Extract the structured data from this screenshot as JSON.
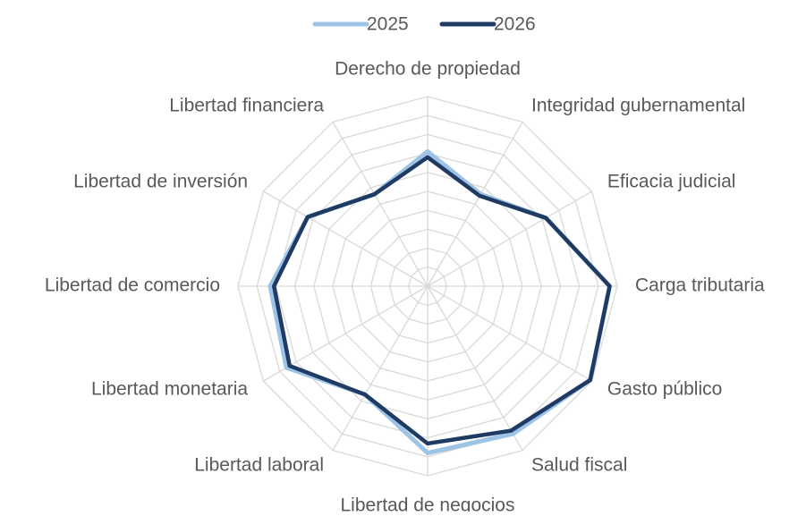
{
  "chart_data": {
    "type": "radar",
    "categories": [
      "Derecho de propiedad",
      "Integridad gubernamental",
      "Eficacia judicial",
      "Carga tributaria",
      "Gasto público",
      "Salud fiscal",
      "Libertad de negocios",
      "Libertad laboral",
      "Libertad monetaria",
      "Libertad de comercio",
      "Libertad de inversión",
      "Libertad financiera"
    ],
    "series": [
      {
        "name": "2025",
        "color": "#9dc3e6",
        "values": [
          71,
          56,
          72,
          96,
          99,
          90,
          88,
          66,
          86,
          83,
          73,
          56
        ]
      },
      {
        "name": "2026",
        "color": "#1f3b63",
        "values": [
          68,
          55,
          72,
          96,
          99,
          88,
          83,
          66,
          84,
          81,
          73,
          56
        ]
      }
    ],
    "rlim": [
      0,
      100
    ],
    "rticks": [
      10,
      20,
      30,
      40,
      50,
      60,
      70,
      80,
      90,
      100
    ],
    "grid": true,
    "legend": "top"
  }
}
